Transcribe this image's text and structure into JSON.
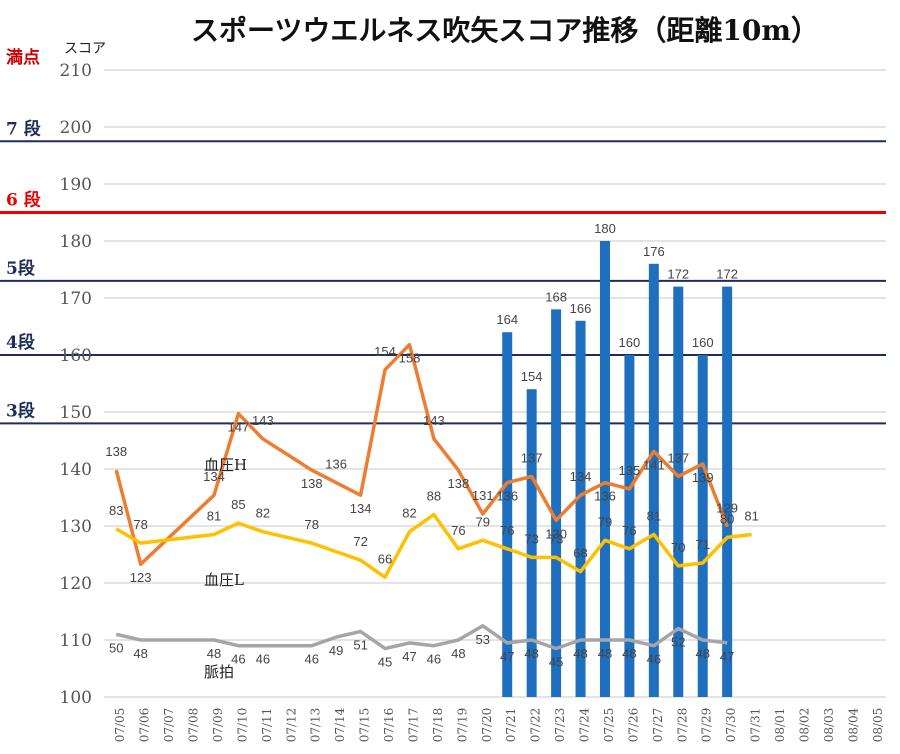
{
  "chart_data": {
    "type": "bar",
    "title": "スポーツウエルネス吹矢スコア推移（距離10m）",
    "ylabel": "スコア",
    "ylim": [
      100,
      210
    ],
    "yticks": [
      100,
      110,
      120,
      130,
      140,
      150,
      160,
      170,
      180,
      190,
      200,
      210
    ],
    "grid": true,
    "categories": [
      "07/05",
      "07/06",
      "07/07",
      "07/08",
      "07/09",
      "07/10",
      "07/11",
      "07/12",
      "07/13",
      "07/14",
      "07/15",
      "07/16",
      "07/17",
      "07/18",
      "07/19",
      "07/20",
      "07/21",
      "07/22",
      "07/23",
      "07/24",
      "07/25",
      "07/26",
      "07/27",
      "07/28",
      "07/29",
      "07/30",
      "07/31",
      "08/01",
      "08/02",
      "08/03",
      "08/04",
      "08/05"
    ],
    "series": [
      {
        "name": "",
        "kind": "bar",
        "color": "#1f6fbf",
        "values": [
          null,
          null,
          null,
          null,
          null,
          null,
          null,
          null,
          null,
          null,
          null,
          null,
          null,
          null,
          null,
          null,
          164,
          154,
          168,
          166,
          180,
          160,
          176,
          172,
          160,
          172,
          null,
          null,
          null,
          null,
          null,
          null
        ]
      },
      {
        "name": "血圧H",
        "kind": "line",
        "color": "#ed7d31",
        "values": [
          138,
          123,
          null,
          null,
          134,
          147,
          143,
          null,
          138,
          136,
          134,
          154,
          158,
          143,
          138,
          131,
          136,
          137,
          130,
          134,
          136,
          135,
          141,
          137,
          139,
          129,
          null,
          null,
          null,
          null,
          null,
          null
        ]
      },
      {
        "name": "血圧L",
        "kind": "line",
        "color": "#ffc000",
        "values": [
          83,
          78,
          null,
          null,
          81,
          85,
          82,
          null,
          78,
          null,
          72,
          66,
          82,
          88,
          76,
          79,
          76,
          73,
          73,
          68,
          79,
          76,
          81,
          70,
          71,
          80,
          81,
          null,
          null,
          null,
          null,
          null
        ]
      },
      {
        "name": "脈拍",
        "kind": "line",
        "color": "#a5a5a5",
        "values": [
          50,
          48,
          null,
          null,
          48,
          46,
          46,
          null,
          46,
          49,
          51,
          45,
          47,
          46,
          48,
          53,
          47,
          48,
          45,
          48,
          48,
          48,
          46,
          52,
          48,
          47,
          null,
          null,
          null,
          null,
          null,
          null
        ]
      }
    ],
    "reference_lines": [
      {
        "label": "満点",
        "value": 210,
        "color": "#cc0000",
        "line": false
      },
      {
        "label": "7 段",
        "value": 197.5,
        "color": "#1f2d5a",
        "line": true
      },
      {
        "label": "6 段",
        "value": 185,
        "color": "#ee0000",
        "line": true
      },
      {
        "label": "5段",
        "value": 173,
        "color": "#1f2d5a",
        "line": true
      },
      {
        "label": "4段",
        "value": 160,
        "color": "#1f2d5a",
        "line": true
      },
      {
        "label": "3段",
        "value": 148,
        "color": "#1f2d5a",
        "line": true
      }
    ]
  }
}
